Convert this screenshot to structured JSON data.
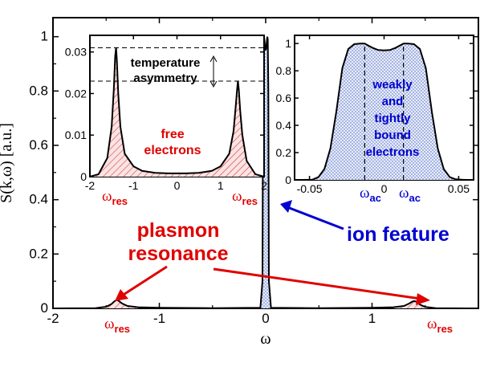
{
  "chart_data": [
    {
      "type": "line",
      "panel": "main",
      "xlabel": "ω",
      "ylabel": "S(k,ω)  [a.u.]",
      "xlim": [
        -2,
        2
      ],
      "ylim": [
        0,
        1.07
      ],
      "xticks": [
        "-2",
        "-1",
        "0",
        "1"
      ],
      "yticks": [
        "0",
        "0.2",
        "0.4",
        "0.6",
        "0.8",
        "1"
      ],
      "series": [
        {
          "x": [
            -2.0,
            -1.6,
            -1.5,
            -1.45,
            -1.42,
            -1.4,
            -1.38,
            -1.35,
            -1.3,
            -1.2,
            -1.0,
            -0.5,
            -0.05,
            -0.03,
            -0.025,
            -0.02,
            -0.015,
            -0.005,
            0,
            0.005,
            0.015,
            0.02,
            0.025,
            0.03,
            0.05,
            0.5,
            1.0,
            1.2,
            1.3,
            1.35,
            1.38,
            1.4,
            1.42,
            1.45,
            1.5,
            1.6,
            1.9
          ],
          "y": [
            0,
            0.001,
            0.006,
            0.016,
            0.027,
            0.031,
            0.027,
            0.018,
            0.009,
            0.004,
            0.002,
            0.001,
            0.002,
            0.1,
            0.8,
            0.99,
            1.0,
            0.96,
            0.95,
            0.96,
            1.0,
            0.99,
            0.8,
            0.1,
            0.002,
            0.001,
            0.002,
            0.004,
            0.009,
            0.018,
            0.025,
            0.027,
            0.024,
            0.014,
            0.005,
            0.001,
            0
          ]
        }
      ]
    },
    {
      "type": "line",
      "panel": "inset-left",
      "xlim": [
        -2,
        2
      ],
      "ylim": [
        0,
        0.034
      ],
      "xticks": [
        "-2",
        "-1",
        "0",
        "1",
        "2"
      ],
      "yticks": [
        "0",
        "0.01",
        "0.02",
        "0.03"
      ],
      "reference_lines": [
        0.031,
        0.023
      ],
      "series": [
        {
          "x": [
            -2.0,
            -1.8,
            -1.6,
            -1.5,
            -1.45,
            -1.42,
            -1.4,
            -1.38,
            -1.35,
            -1.3,
            -1.2,
            -1.0,
            -0.8,
            -0.5,
            -0.2,
            0,
            0.2,
            0.5,
            0.8,
            1.0,
            1.2,
            1.3,
            1.35,
            1.38,
            1.4,
            1.42,
            1.45,
            1.5,
            1.6,
            1.8,
            2.0
          ],
          "y": [
            0,
            0.0006,
            0.0045,
            0.012,
            0.021,
            0.029,
            0.031,
            0.028,
            0.02,
            0.012,
            0.0055,
            0.0025,
            0.0014,
            0.0009,
            0.0008,
            0.0008,
            0.0008,
            0.0009,
            0.0014,
            0.0025,
            0.0055,
            0.011,
            0.017,
            0.021,
            0.023,
            0.021,
            0.016,
            0.01,
            0.0038,
            0.0006,
            0
          ]
        }
      ]
    },
    {
      "type": "line",
      "panel": "inset-right",
      "xlim": [
        -0.06,
        0.06
      ],
      "ylim": [
        0,
        1.06
      ],
      "xticks": [
        "-0.05",
        "0",
        "0.05"
      ],
      "yticks": [
        "0",
        "0.2",
        "0.4",
        "0.6",
        "0.8",
        "1"
      ],
      "reference_lines_x": [
        -0.013,
        0.013
      ],
      "series": [
        {
          "x": [
            -0.055,
            -0.048,
            -0.044,
            -0.04,
            -0.036,
            -0.032,
            -0.028,
            -0.024,
            -0.02,
            -0.016,
            -0.013,
            -0.008,
            -0.004,
            0,
            0.004,
            0.008,
            0.013,
            0.016,
            0.02,
            0.024,
            0.028,
            0.032,
            0.036,
            0.04,
            0.044,
            0.048,
            0.052,
            0.055
          ],
          "y": [
            0,
            0.002,
            0.02,
            0.08,
            0.23,
            0.5,
            0.82,
            0.96,
            0.995,
            1.0,
            1.0,
            0.97,
            0.952,
            0.95,
            0.952,
            0.97,
            1.0,
            1.0,
            0.995,
            0.96,
            0.82,
            0.5,
            0.23,
            0.08,
            0.02,
            0.004,
            0.001,
            0
          ]
        }
      ]
    }
  ],
  "annotations": {
    "temperature": "temperature",
    "asymmetry": "asymmetry",
    "free1": "free",
    "free2": "electrons",
    "weakly": "weakly",
    "and": "and",
    "tightly": "tightly",
    "bound": "bound",
    "electrons": "electrons",
    "omega": "ω",
    "res": "res",
    "ac": "ac",
    "plasmon": "plasmon",
    "resonance": "resonance",
    "ion_feature": "ion feature"
  },
  "colors": {
    "red": "#e00000",
    "blue": "#0000d0",
    "hatch_red": "#d04040",
    "dots_blue": "#4060c0"
  }
}
